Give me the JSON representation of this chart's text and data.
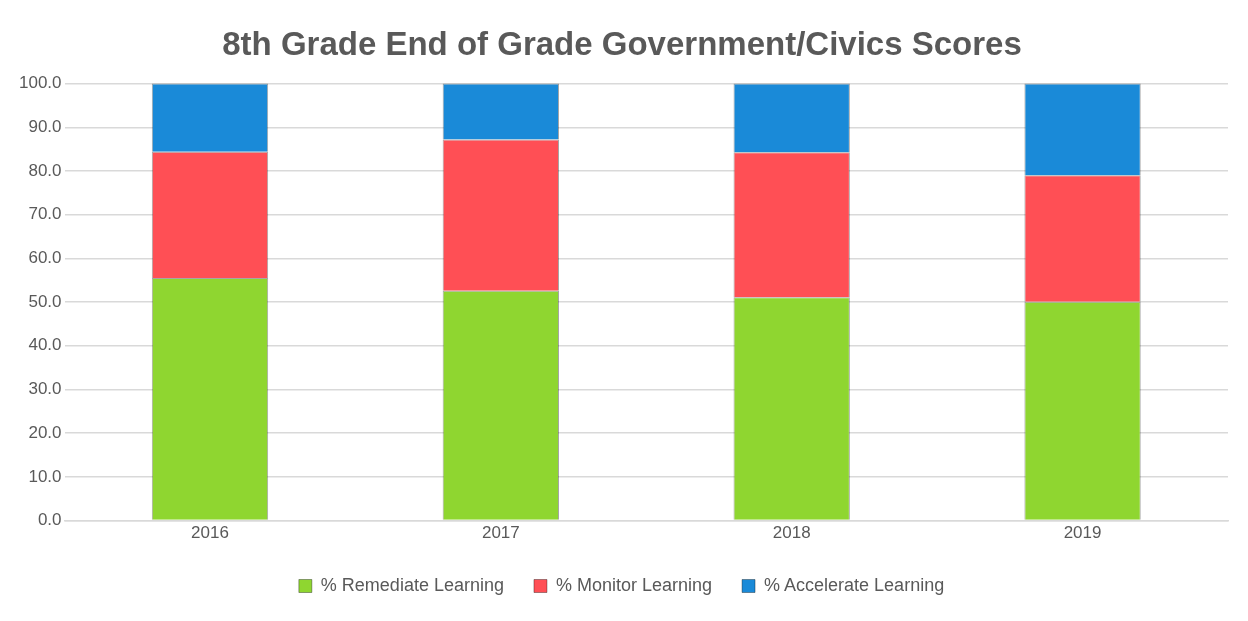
{
  "chart_data": {
    "type": "bar",
    "title": "8th Grade End of Grade Government/Civics Scores",
    "categories": [
      "2016",
      "2017",
      "2018",
      "2019"
    ],
    "stacked": true,
    "series": [
      {
        "name": "% Remediate Learning",
        "color": "#8fd630",
        "values": [
          55.5,
          52.6,
          51.1,
          50.1
        ]
      },
      {
        "name": "% Monitor Learning",
        "color": "#ff4f55",
        "values": [
          28.9,
          34.6,
          33.2,
          28.9
        ]
      },
      {
        "name": "% Accelerate Learning",
        "color": "#1a8ad8",
        "values": [
          15.6,
          12.8,
          15.7,
          21.0
        ]
      }
    ],
    "ylim": [
      0,
      100
    ],
    "yticks": [
      {
        "value": 0,
        "label": "0.0"
      },
      {
        "value": 10,
        "label": "10.0"
      },
      {
        "value": 20,
        "label": "20.0"
      },
      {
        "value": 30,
        "label": "30.0"
      },
      {
        "value": 40,
        "label": "40.0"
      },
      {
        "value": 50,
        "label": "50.0"
      },
      {
        "value": 60,
        "label": "60.0"
      },
      {
        "value": 70,
        "label": "70.0"
      },
      {
        "value": 80,
        "label": "80.0"
      },
      {
        "value": 90,
        "label": "90.0"
      },
      {
        "value": 100,
        "label": "100.0"
      }
    ],
    "grid": "y",
    "legend": "bottom"
  }
}
